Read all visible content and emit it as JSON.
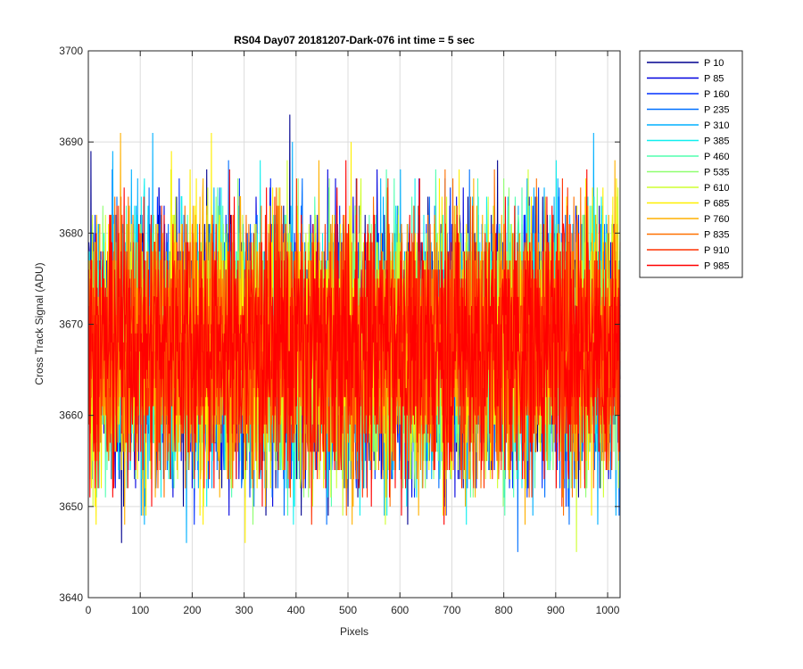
{
  "chart_data": {
    "type": "line",
    "title": "RS04 Day07 20181207-Dark-076 int time = 5 sec",
    "xlabel": "Pixels",
    "ylabel": "Cross Track Signal (ADU)",
    "xlim": [
      0,
      1024
    ],
    "ylim": [
      3640,
      3700
    ],
    "xticks": [
      0,
      100,
      200,
      300,
      400,
      500,
      600,
      700,
      800,
      900,
      1000
    ],
    "yticks": [
      3640,
      3650,
      3660,
      3670,
      3680,
      3690,
      3700
    ],
    "grid": true,
    "legend_position": "outside-top-right",
    "n_points": 1024,
    "noise_center": 3668,
    "noise_min": 3641,
    "noise_max": 3700,
    "series": [
      {
        "name": "P 10",
        "color": "#00008f"
      },
      {
        "name": "P 85",
        "color": "#0000df"
      },
      {
        "name": "P 160",
        "color": "#0030ff"
      },
      {
        "name": "P 235",
        "color": "#0070ff"
      },
      {
        "name": "P 310",
        "color": "#00b0ff"
      },
      {
        "name": "P 385",
        "color": "#10efef"
      },
      {
        "name": "P 460",
        "color": "#50ffaf"
      },
      {
        "name": "P 535",
        "color": "#8fff70"
      },
      {
        "name": "P 610",
        "color": "#cfff30"
      },
      {
        "name": "P 685",
        "color": "#ffef00"
      },
      {
        "name": "P 760",
        "color": "#ffb000"
      },
      {
        "name": "P 835",
        "color": "#ff7000"
      },
      {
        "name": "P 910",
        "color": "#ff3000"
      },
      {
        "name": "P 985",
        "color": "#ff0000"
      }
    ]
  }
}
